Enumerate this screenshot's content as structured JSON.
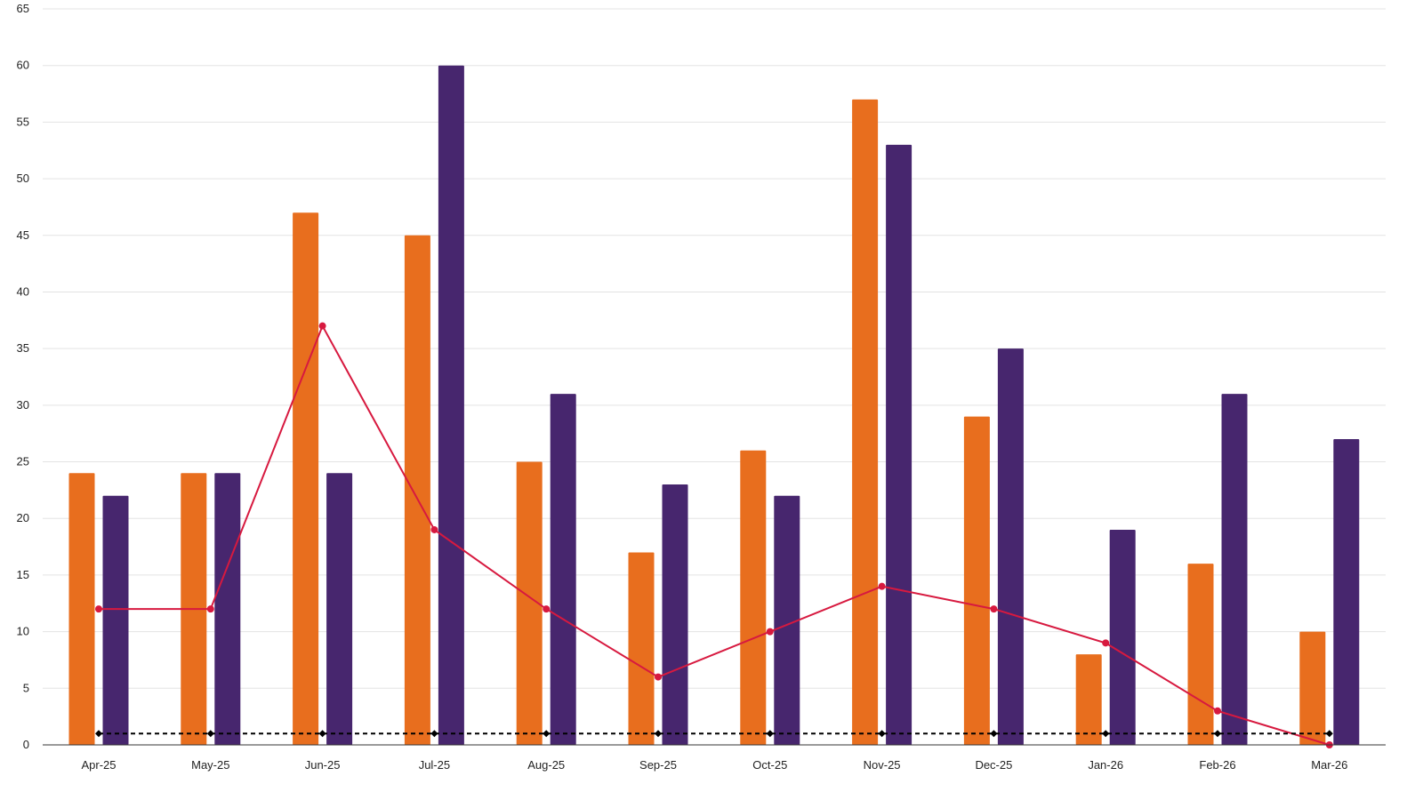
{
  "chart_data": {
    "type": "bar",
    "categories": [
      "Apr-25",
      "May-25",
      "Jun-25",
      "Jul-25",
      "Aug-25",
      "Sep-25",
      "Oct-25",
      "Nov-25",
      "Dec-25",
      "Jan-26",
      "Feb-26",
      "Mar-26"
    ],
    "bar_series": [
      {
        "values": [
          24,
          24,
          47,
          45,
          25,
          17,
          26,
          57,
          29,
          8,
          16,
          10
        ],
        "color": "#E86E1E"
      },
      {
        "values": [
          22,
          24,
          24,
          60,
          31,
          23,
          22,
          53,
          35,
          19,
          31,
          27
        ],
        "color": "#47266E"
      }
    ],
    "line_series": [
      {
        "values": [
          12,
          12,
          37,
          19,
          12,
          6,
          10,
          14,
          12,
          9,
          3,
          0
        ],
        "color": "#D7193F",
        "style": "solid",
        "marker": "circle"
      },
      {
        "values": [
          1,
          1,
          1,
          1,
          1,
          1,
          1,
          1,
          1,
          1,
          1,
          1
        ],
        "color": "#000000",
        "style": "dashed",
        "marker": "diamond"
      }
    ],
    "y_ticks": [
      0,
      5,
      10,
      15,
      20,
      25,
      30,
      35,
      40,
      45,
      50,
      55,
      60,
      65
    ],
    "ylim": [
      0,
      65
    ],
    "grid": true,
    "legend": "none",
    "title": "",
    "xlabel": "",
    "ylabel": ""
  }
}
